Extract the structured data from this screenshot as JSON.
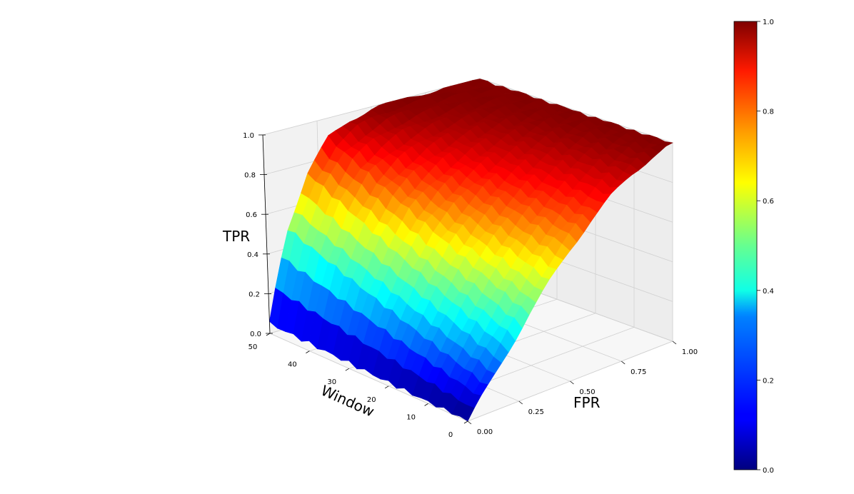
{
  "chart_data": {
    "type": "surface3d",
    "title": "",
    "xlabel": "FPR",
    "ylabel": "Window",
    "zlabel": "TPR",
    "xlim": [
      0,
      1
    ],
    "ylim": [
      0,
      50
    ],
    "zlim": [
      0,
      1
    ],
    "x_ticks": [
      "0.00",
      "0.25",
      "0.50",
      "0.75",
      "1.00"
    ],
    "y_ticks": [
      "0",
      "10",
      "20",
      "30",
      "40",
      "50"
    ],
    "z_ticks": [
      "0.0",
      "0.2",
      "0.4",
      "0.6",
      "0.8",
      "1.0"
    ],
    "colormap": "jet",
    "colorbar_ticks": [
      "0.0",
      "0.2",
      "0.4",
      "0.6",
      "0.8",
      "1.0"
    ],
    "grid": true,
    "description_x": [
      0.0,
      0.05,
      0.1,
      0.2,
      0.3,
      0.4,
      0.5,
      0.6,
      0.7,
      0.8,
      0.9,
      1.0
    ],
    "description_y": [
      0,
      5,
      10,
      15,
      20,
      25,
      30,
      35,
      40,
      45,
      50
    ],
    "z_at_window_0": [
      0.0,
      0.08,
      0.15,
      0.3,
      0.45,
      0.58,
      0.7,
      0.8,
      0.88,
      0.94,
      0.98,
      1.0
    ],
    "z_at_window_50": [
      0.05,
      0.3,
      0.5,
      0.75,
      0.9,
      0.96,
      0.99,
      1.0,
      1.0,
      1.0,
      1.0,
      1.0
    ]
  }
}
